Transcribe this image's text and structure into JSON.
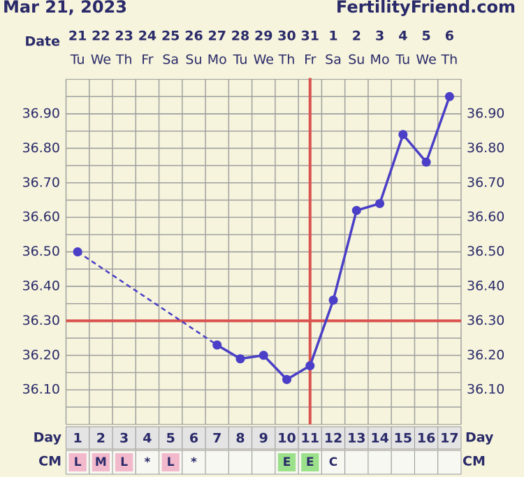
{
  "chart_data": {
    "type": "line",
    "title": "Mar 21, 2023",
    "source": "FertilityFriend.com",
    "date_label": "Date",
    "dates": [
      "21",
      "22",
      "23",
      "24",
      "25",
      "26",
      "27",
      "28",
      "29",
      "30",
      "31",
      "1",
      "2",
      "3",
      "4",
      "5",
      "6"
    ],
    "weekdays": [
      "Tu",
      "We",
      "Th",
      "Fr",
      "Sa",
      "Su",
      "Mo",
      "Tu",
      "We",
      "Th",
      "Fr",
      "Sa",
      "Su",
      "Mo",
      "Tu",
      "We",
      "Th"
    ],
    "day_label": "Day",
    "categories": [
      "1",
      "2",
      "3",
      "4",
      "5",
      "6",
      "7",
      "8",
      "9",
      "10",
      "11",
      "12",
      "13",
      "14",
      "15",
      "16",
      "17"
    ],
    "cm_label": "CM",
    "cm": [
      "L",
      "M",
      "L",
      "*",
      "L",
      "*",
      null,
      null,
      null,
      "E",
      "E",
      "C",
      null,
      null,
      null,
      null,
      null
    ],
    "cm_colors": [
      "#f2b8cb",
      "#f2b8cb",
      "#f2b8cb",
      null,
      "#f2b8cb",
      null,
      null,
      null,
      null,
      "#9be08a",
      "#9be08a",
      null,
      null,
      null,
      null,
      null,
      null
    ],
    "series": [
      {
        "color": "#4a3fc6",
        "values": [
          36.5,
          null,
          null,
          null,
          null,
          null,
          36.23,
          36.19,
          36.2,
          36.13,
          36.17,
          36.36,
          36.62,
          36.64,
          36.84,
          36.76,
          36.95
        ]
      }
    ],
    "ylim": [
      36.0,
      37.0
    ],
    "yticks": [
      {
        "value": 36.1,
        "label": "36.10"
      },
      {
        "value": 36.2,
        "label": "36.20"
      },
      {
        "value": 36.3,
        "label": "36.30"
      },
      {
        "value": 36.4,
        "label": "36.40"
      },
      {
        "value": 36.5,
        "label": "36.50"
      },
      {
        "value": 36.6,
        "label": "36.60"
      },
      {
        "value": 36.7,
        "label": "36.70"
      },
      {
        "value": 36.8,
        "label": "36.80"
      },
      {
        "value": 36.9,
        "label": "36.90"
      }
    ],
    "grid": true,
    "coverline": 36.3,
    "ovulation_day": 11,
    "marker_line_color": "#d9534f"
  }
}
